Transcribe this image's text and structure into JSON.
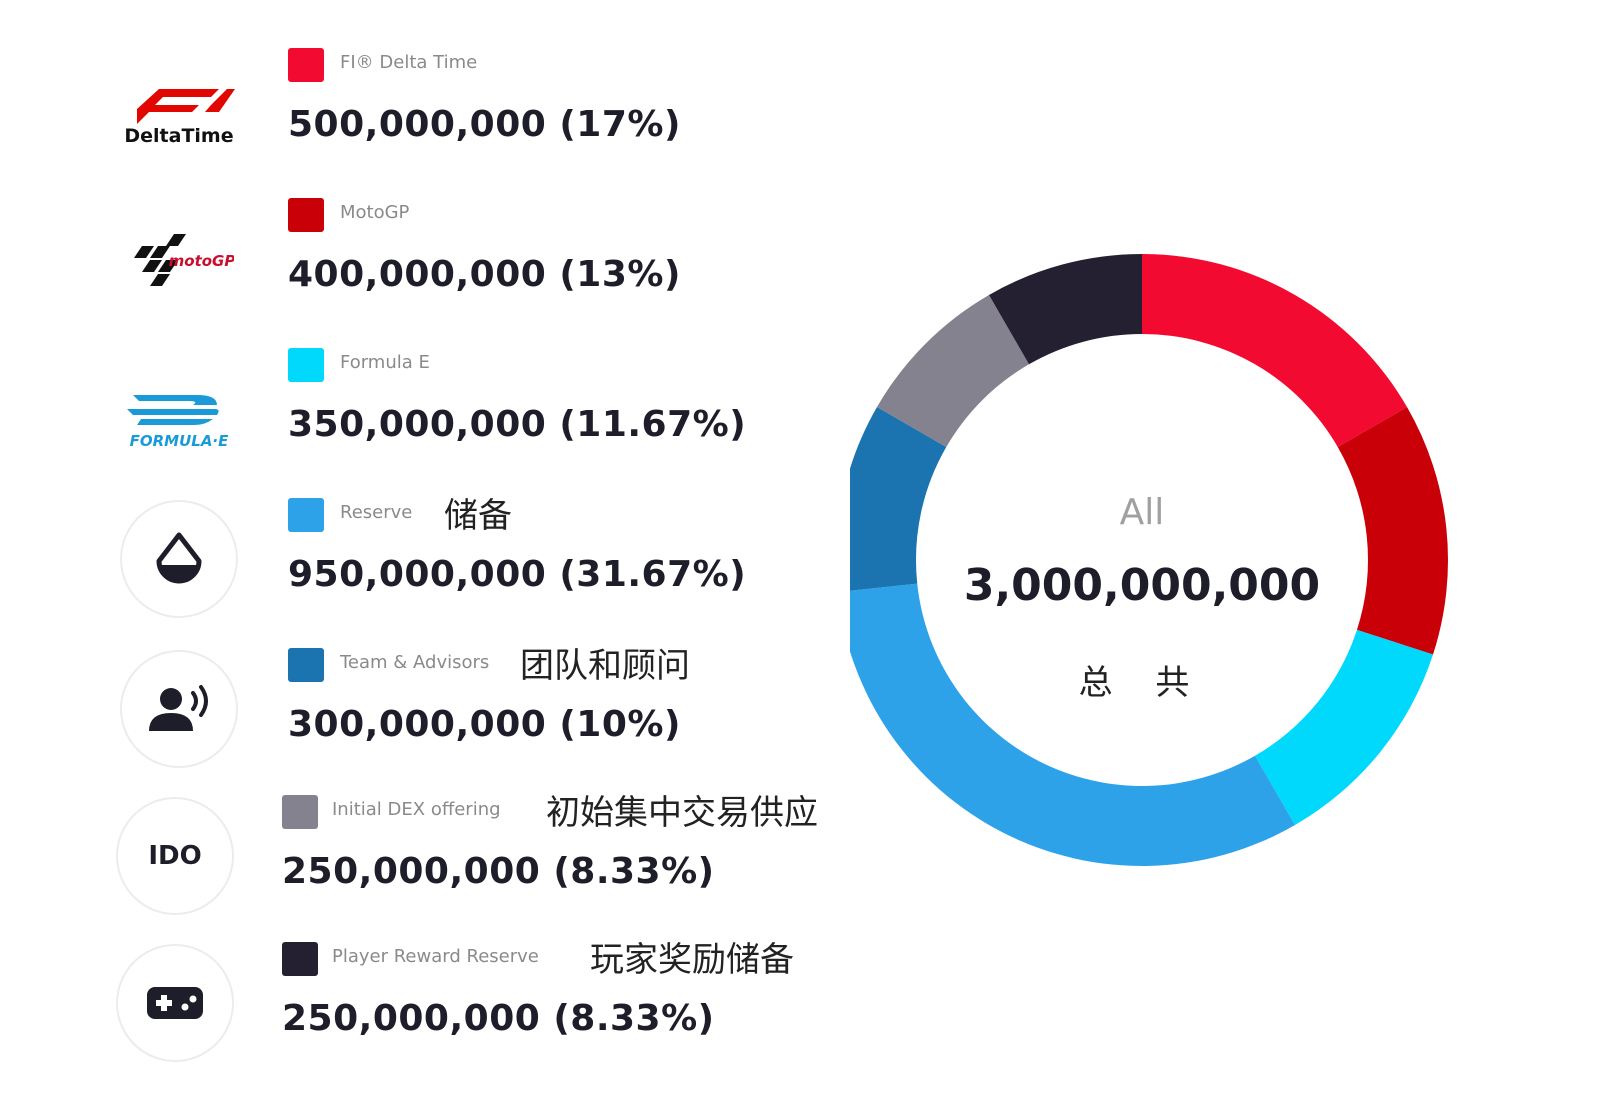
{
  "rows": [
    {
      "label": "FI® Delta Time",
      "value_text": "500,000,000 (17%)",
      "cn": "",
      "color": "#f30a31",
      "icon": "f1-delta-time-logo",
      "logo_text": "DeltaTime"
    },
    {
      "label": "MotoGP",
      "value_text": "400,000,000 (13%)",
      "cn": "",
      "color": "#c90008",
      "icon": "motogp-logo",
      "logo_text": "motoGP"
    },
    {
      "label": "Formula E",
      "value_text": "350,000,000 (11.67%)",
      "cn": "",
      "color": "#00d9fc",
      "icon": "formula-e-logo",
      "logo_text": "FORMULA·E"
    },
    {
      "label": "Reserve",
      "value_text": "950,000,000 (31.67%)",
      "cn": "储备",
      "color": "#2ea2e9",
      "icon": "droplet-icon"
    },
    {
      "label": "Team & Advisors",
      "value_text": "300,000,000 (10%)",
      "cn": "团队和顾问",
      "color": "#1b74b0",
      "icon": "speaking-person-icon"
    },
    {
      "label": "Initial DEX offering",
      "value_text": "250,000,000 (8.33%)",
      "cn": "初始集中交易供应",
      "color": "#858290",
      "icon": "ido-text-icon",
      "icon_text": "IDO"
    },
    {
      "label": "Player Reward Reserve",
      "value_text": "250,000,000 (8.33%)",
      "cn": "玩家奖励储备",
      "color": "#242031",
      "icon": "gamepad-icon"
    }
  ],
  "center": {
    "label": "All",
    "total": "3,000,000,000",
    "cn": "总 共"
  },
  "chart_data": {
    "type": "pie",
    "donut": true,
    "total": 3000000000,
    "categories": [
      "FI® Delta Time",
      "MotoGP",
      "Formula E",
      "Reserve",
      "Team & Advisors",
      "Initial DEX offering",
      "Player Reward Reserve"
    ],
    "values": [
      500000000,
      400000000,
      350000000,
      950000000,
      300000000,
      250000000,
      250000000
    ],
    "percentages": [
      17,
      13,
      11.67,
      31.67,
      10,
      8.33,
      8.33
    ],
    "colors": [
      "#f30a31",
      "#c90008",
      "#00d9fc",
      "#2ea2e9",
      "#1b74b0",
      "#858290",
      "#242031"
    ]
  }
}
